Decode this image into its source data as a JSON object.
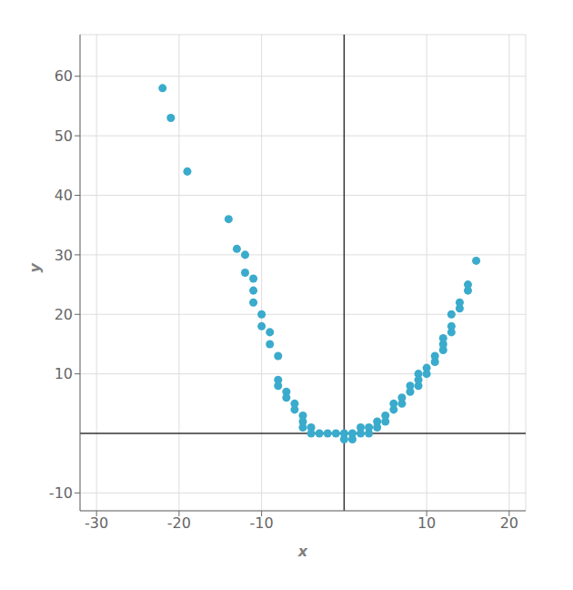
{
  "chart_data": {
    "type": "scatter",
    "xlabel": "x",
    "ylabel": "y",
    "xlim": [
      -32,
      22
    ],
    "ylim": [
      -13,
      67
    ],
    "xticks": [
      -30,
      -20,
      -10,
      10,
      20
    ],
    "yticks": [
      -10,
      10,
      20,
      30,
      40,
      50,
      60
    ],
    "grid": true,
    "color": "#3aabcc",
    "x": [
      -22,
      -21,
      -19,
      -14,
      -13,
      -12,
      -12,
      -11,
      -11,
      -11,
      -10,
      -10,
      -9,
      -9,
      -8,
      -8,
      -8,
      -7,
      -7,
      -6,
      -6,
      -5,
      -5,
      -5,
      -4,
      -4,
      -3,
      -2,
      -1,
      0,
      0,
      1,
      1,
      2,
      2,
      3,
      3,
      4,
      4,
      5,
      5,
      6,
      6,
      7,
      7,
      8,
      8,
      9,
      9,
      9,
      10,
      10,
      11,
      11,
      12,
      12,
      12,
      13,
      13,
      13,
      14,
      14,
      15,
      15,
      16
    ],
    "values": [
      58,
      53,
      44,
      36,
      31,
      30,
      27,
      26,
      24,
      22,
      20,
      18,
      17,
      15,
      13,
      9,
      8,
      7,
      6,
      5,
      4,
      3,
      2,
      1,
      1,
      0,
      0,
      0,
      0,
      0,
      -1,
      0,
      -1,
      0,
      1,
      0,
      1,
      1,
      2,
      2,
      3,
      4,
      5,
      5,
      6,
      7,
      8,
      8,
      9,
      10,
      10,
      11,
      12,
      13,
      14,
      15,
      16,
      17,
      18,
      20,
      21,
      22,
      24,
      25,
      29
    ]
  }
}
